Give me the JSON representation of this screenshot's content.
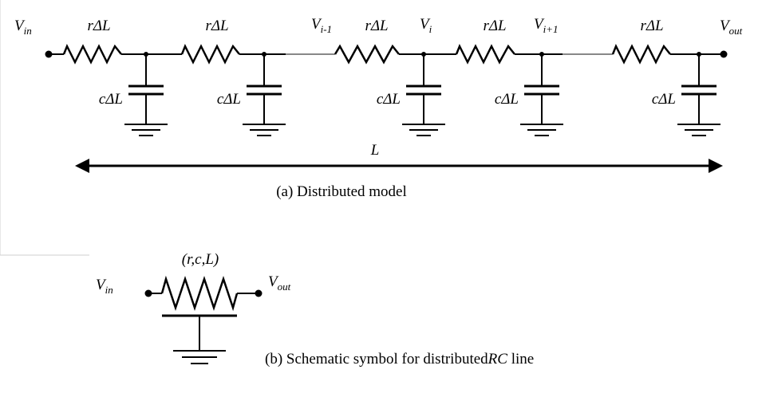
{
  "distributed": {
    "v_in": {
      "main": "V",
      "sub": "in"
    },
    "v_out": {
      "main": "V",
      "sub": "out"
    },
    "node_labels": [
      {
        "main": "V",
        "sub": "i-1"
      },
      {
        "main": "V",
        "sub": "i"
      },
      {
        "main": "V",
        "sub": "i+1"
      }
    ],
    "resistor_label": "rΔL",
    "capacitor_label": "cΔL",
    "length_label": "L",
    "caption": "(a) Distributed model"
  },
  "symbol": {
    "v_in": {
      "main": "V",
      "sub": "in"
    },
    "v_out": {
      "main": "V",
      "sub": "out"
    },
    "params": "(r,c,L)",
    "caption_prefix": "(b) Schematic symbol for distributed",
    "caption_emph": "RC",
    "caption_suffix": " line"
  }
}
